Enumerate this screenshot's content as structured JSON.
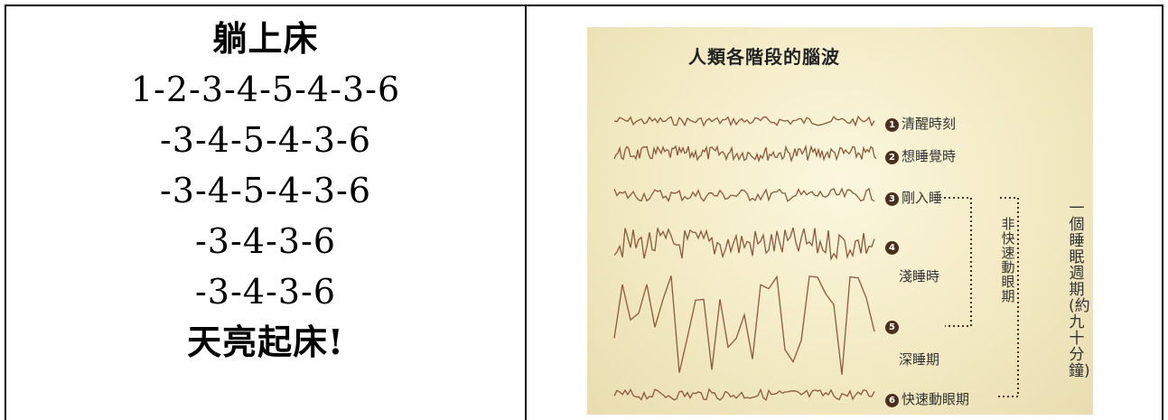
{
  "left_panel": {
    "lines": [
      "躺上床",
      "1-2-3-4-5-4-3-6",
      "-3-4-5-4-3-6",
      "-3-4-5-4-3-6",
      "-3-4-3-6",
      "-3-4-3-6",
      "天亮起床!"
    ]
  },
  "figure": {
    "title": "人類各階段的腦波",
    "stages": [
      {
        "num": "1",
        "label": "清醒時刻"
      },
      {
        "num": "2",
        "label": "想睡覺時"
      },
      {
        "num": "3",
        "label": "剛入睡"
      },
      {
        "num": "4",
        "label": "淺睡時"
      },
      {
        "num": "5",
        "label": "深睡期"
      },
      {
        "num": "6",
        "label": "快速動眼期"
      }
    ],
    "bracket_nrem": "非快速動眼期",
    "bracket_cycle": "一個睡眠週期(約九十分鐘)",
    "colors": {
      "wave": "#8a5a3c",
      "bracket": "#4a2f1c",
      "background": "#f4ecc8"
    }
  }
}
